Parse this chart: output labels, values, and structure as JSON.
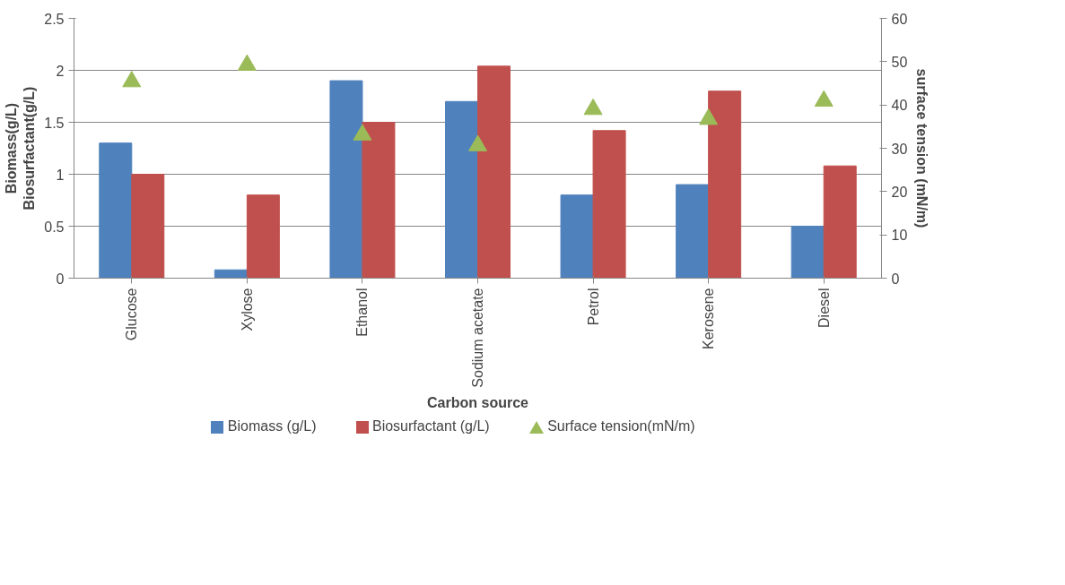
{
  "chart_data": {
    "type": "bar",
    "xlabel": "Carbon source",
    "ylabel": "Biomass(g/L)\nBiosurfactant(g/L)",
    "y2label": "surface tension (mN/m)",
    "categories": [
      "Glucose",
      "Xylose",
      "Ethanol",
      "Sodium acetate",
      "Petrol",
      "Kerosene",
      "Diesel"
    ],
    "series": [
      {
        "name": "Biomass (g/L)",
        "color": "#4f81bd",
        "values": [
          1.3,
          0.08,
          1.9,
          1.7,
          0.8,
          0.9,
          0.5
        ]
      },
      {
        "name": "Biosurfactant (g/L)",
        "color": "#c0504d",
        "values": [
          1.0,
          0.8,
          1.5,
          2.04,
          1.42,
          1.8,
          1.08
        ]
      },
      {
        "name": "Surface tension(mN/m)",
        "type": "scatter",
        "marker": "triangle",
        "axis": "y2",
        "color": "#9bbb59",
        "values": [
          45.4,
          49.2,
          33.1,
          30.6,
          39.0,
          36.7,
          40.9
        ]
      }
    ],
    "ylim": [
      0,
      2.5
    ],
    "yticks": [
      0,
      0.5,
      1,
      1.5,
      2,
      2.5
    ],
    "y2lim": [
      0,
      60
    ],
    "y2ticks": [
      0,
      10,
      20,
      30,
      40,
      50,
      60
    ],
    "grid": "y",
    "legend": "bottom"
  }
}
